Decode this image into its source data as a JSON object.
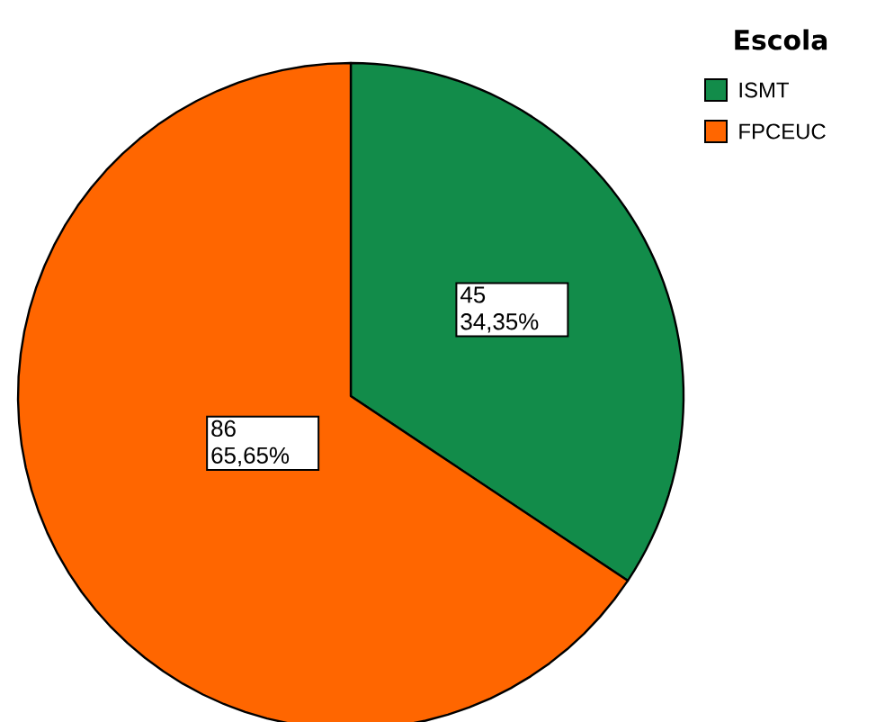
{
  "chart_data": {
    "type": "pie",
    "categories": [
      "ISMT",
      "FPCEUC"
    ],
    "values": [
      45,
      86
    ],
    "colors": [
      "#128c4a",
      "#ff6600"
    ],
    "value_labels": [
      "45 34,35%",
      "86 65,65%"
    ],
    "legend_title": "Escola",
    "legend": "top right"
  }
}
